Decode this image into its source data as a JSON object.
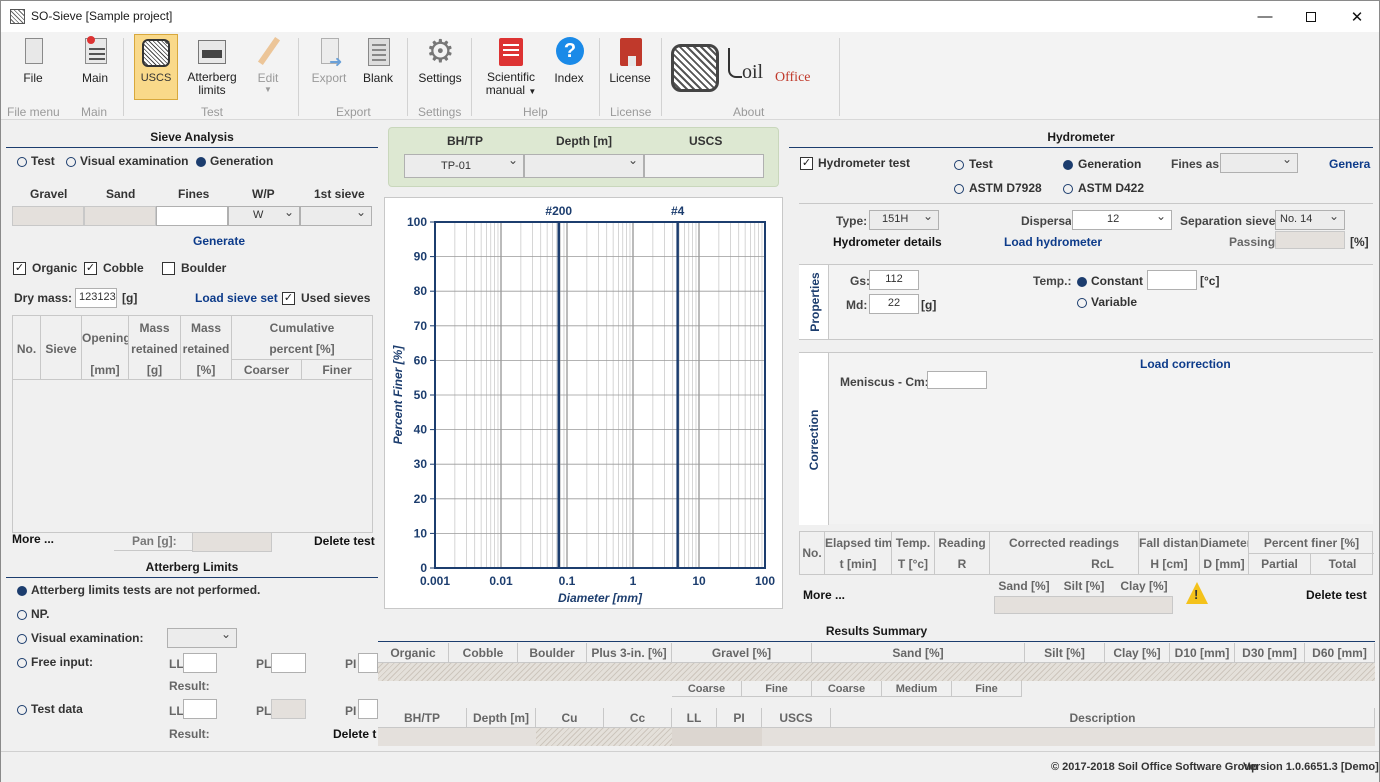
{
  "window": {
    "title": "SO-Sieve [Sample project]"
  },
  "ribbon": {
    "buttons": [
      {
        "label": "File",
        "icon": "file-icon"
      },
      {
        "label": "Main",
        "icon": "main-icon"
      },
      {
        "label": "USCS",
        "icon": "uscs-icon"
      },
      {
        "label": "Atterberg",
        "label2": "limits",
        "icon": "atterberg-icon"
      },
      {
        "label": "Edit",
        "icon": "edit-icon"
      },
      {
        "label": "Export",
        "icon": "export-icon"
      },
      {
        "label": "Blank",
        "icon": "blank-icon"
      },
      {
        "label": "Settings",
        "icon": "settings-icon"
      },
      {
        "label": "Scientific",
        "label2": "manual",
        "icon": "scientific-manual-icon"
      },
      {
        "label": "Index",
        "icon": "help-icon"
      },
      {
        "label": "License",
        "icon": "license-icon"
      }
    ],
    "groups": [
      "File menu",
      "Main",
      "Test",
      "Export",
      "Settings",
      "Help",
      "License",
      "About"
    ],
    "logo": {
      "prefix": "oil",
      "suffix": "Office"
    }
  },
  "sieve": {
    "title": "Sieve Analysis",
    "modes": [
      "Test",
      "Visual examination",
      "Generation"
    ],
    "headers": [
      "Gravel",
      "Sand",
      "Fines",
      "W/P",
      "1st sieve"
    ],
    "wp_value": "W",
    "generate": "Generate",
    "checks": [
      "Organic",
      "Cobble",
      "Boulder"
    ],
    "dry_mass_label": "Dry mass:",
    "dry_mass_value": "123123",
    "unit_g": "[g]",
    "load_sieve_set": "Load sieve set",
    "used_sieves": "Used sieves",
    "table": {
      "no": "No.",
      "sieve": "Sieve",
      "opening": "Opening",
      "opening_unit": "[mm]",
      "mass1": "Mass",
      "mass2": "retained",
      "mass_unit": "[g]",
      "massp1": "Mass",
      "massp2": "retained",
      "massp_unit": "[%]",
      "cum1": "Cumulative",
      "cum2": "percent [%]",
      "coarser": "Coarser",
      "finer": "Finer"
    },
    "more": "More ...",
    "pan": "Pan [g]:",
    "delete": "Delete test"
  },
  "atterberg": {
    "title": "Atterberg Limits",
    "not_performed": "Atterberg limits tests are not performed.",
    "np": "NP.",
    "visual": "Visual examination:",
    "free": "Free input:",
    "test_data": "Test data",
    "ll": "LL",
    "pl": "PL",
    "pi": "PI",
    "result": "Result:",
    "delete": "Delete t"
  },
  "bh": {
    "headers": [
      "BH/TP",
      "Depth [m]",
      "USCS"
    ],
    "bh_value": "TP-01"
  },
  "chart_data": {
    "type": "line",
    "xscale": "log",
    "xlim": [
      0.001,
      100
    ],
    "ylim": [
      0,
      100
    ],
    "xticks": [
      "0.001",
      "0.01",
      "0.1",
      "1",
      "10",
      "100"
    ],
    "yticks": [
      "0",
      "10",
      "20",
      "30",
      "40",
      "50",
      "60",
      "70",
      "80",
      "90",
      "100"
    ],
    "xlabel": "Diameter [mm]",
    "ylabel": "Percent Finer [%]",
    "markers": [
      {
        "label": "#200",
        "x": 0.075
      },
      {
        "label": "#4",
        "x": 4.75
      }
    ],
    "grid": true,
    "series": []
  },
  "hydro": {
    "title": "Hydrometer",
    "test_label": "Hydrometer test",
    "modes": [
      "Test",
      "Generation",
      "ASTM D7928",
      "ASTM D422"
    ],
    "fines_as": "Fines as:",
    "generate": "Genera",
    "type_label": "Type:",
    "type_value": "151H",
    "dispersant_label": "Dispersa",
    "dispersant_value": "12",
    "sep_label": "Separation sieve:",
    "sep_value": "No. 14",
    "details": "Hydrometer details",
    "load": "Load hydrometer",
    "passing": "Passing:",
    "percent_unit": "[%]",
    "properties": "Properties",
    "gs_label": "Gs:",
    "gs_value": "112",
    "md_label": "Md:",
    "md_value": "22",
    "unit_g": "[g]",
    "temp_label": "Temp.:",
    "constant": "Constant",
    "variable": "Variable",
    "temp_unit": "[°c]",
    "load_correction": "Load correction",
    "meniscus": "Meniscus - Cm:",
    "correction": "Correction",
    "table": {
      "no": "No.",
      "elapsed": "Elapsed time",
      "elapsed_u": "t [min]",
      "temp": "Temp.",
      "temp_u": "T [°c]",
      "reading": "Reading",
      "reading_u": "R",
      "corrected": "Corrected readings",
      "rcl": "RcL",
      "fall": "Fall distance",
      "fall_u": "H [cm]",
      "diameter": "Diameter",
      "diameter_u": "D [mm]",
      "pf": "Percent finer [%]",
      "partial": "Partial",
      "total": "Total"
    },
    "sand": "Sand [%]",
    "silt": "Silt [%]",
    "clay": "Clay [%]",
    "more": "More ...",
    "delete": "Delete test"
  },
  "results": {
    "title": "Results Summary",
    "row1": [
      "Organic",
      "Cobble",
      "Boulder",
      "Plus 3-in. [%]",
      "Gravel [%]",
      "Sand [%]",
      "Silt [%]",
      "Clay [%]",
      "D10 [mm]",
      "D30 [mm]",
      "D60 [mm]"
    ],
    "sub": [
      "Coarse",
      "Fine",
      "Coarse",
      "Medium",
      "Fine"
    ],
    "row2": [
      "BH/TP",
      "Depth [m]",
      "Cu",
      "Cc",
      "LL",
      "PI",
      "USCS",
      "Description"
    ]
  },
  "status": {
    "copyright": "© 2017-2018 Soil Office Software Group",
    "version": "Version 1.0.6651.3 [Demo]"
  }
}
